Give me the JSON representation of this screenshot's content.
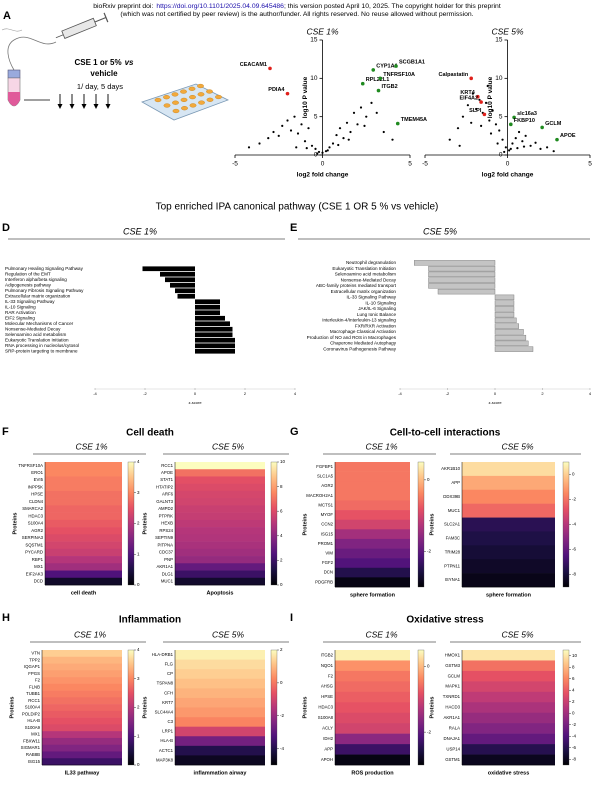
{
  "header": {
    "prefix": "bioRxiv preprint doi:",
    "doi": "https://doi.org/10.1101/2025.04.09.645486",
    "suffix": "; this version posted April 10, 2025. The copyright holder for this preprint",
    "line2": "(which was not certified by peer review) is the author/funder. All rights reserved. No reuse allowed without permission."
  },
  "panels": {
    "a": "A",
    "d": "D",
    "e": "E",
    "f": "F",
    "g": "G",
    "h": "H",
    "i": "I"
  },
  "schema": {
    "treatment": "CSE 1 or 5%",
    "vs": "vs",
    "control": "vehicle",
    "dosing": "1/ day, 5 days"
  },
  "ipa_title": "Top enriched IPA canonical pathway (CSE 1 OR 5 % vs vehicle)",
  "sections": {
    "f": "Cell death",
    "g": "Cell-to-cell interactions",
    "h": "Inflammation",
    "i": "Oxidative stress"
  },
  "chart_data": [
    {
      "type": "scatter",
      "title": "CSE 1%",
      "xlabel": "log2 fold change",
      "ylabel": "log10 P value",
      "xlim": [
        -5,
        5
      ],
      "ylim": [
        0,
        15
      ],
      "xticks": [
        -5,
        0,
        5
      ],
      "yticks": [
        0,
        5,
        10,
        15
      ],
      "point_color": "#000000",
      "points": {
        "x": [
          -4.2,
          -3.6,
          -3.1,
          -2.8,
          -2.5,
          -2.3,
          -2.0,
          -1.8,
          -1.6,
          -1.4,
          -1.2,
          -1.0,
          -0.8,
          -0.6,
          -0.4,
          -0.2,
          0,
          0.2,
          0.4,
          0.6,
          0.8,
          1.0,
          1.2,
          1.4,
          1.6,
          1.8,
          2.0,
          2.2,
          2.5,
          2.8,
          3.1,
          3.5,
          4.0,
          -1.5,
          -0.9,
          -0.3,
          0.3,
          0.9,
          1.5,
          2.4
        ],
        "y": [
          1.0,
          1.5,
          2.2,
          3.0,
          2.5,
          3.8,
          4.5,
          3.2,
          5.0,
          2.8,
          4.0,
          1.8,
          3.5,
          1.2,
          0.8,
          0.4,
          0.3,
          0.5,
          1.0,
          1.5,
          2.6,
          3.5,
          2.2,
          4.2,
          3.0,
          5.5,
          4.0,
          6.2,
          5.0,
          6.8,
          5.5,
          3.0,
          2.0,
          1.0,
          0.9,
          0.2,
          0.6,
          1.3,
          2.0,
          3.8
        ]
      },
      "labeled": [
        {
          "name": "CEACAM1",
          "color": "#e0201b",
          "x": -3.0,
          "y": 11.3
        },
        {
          "name": "PDIA4",
          "color": "#e0201b",
          "x": -2.0,
          "y": 8.0
        },
        {
          "name": "CYP1A1",
          "color": "#1f8a1f",
          "x": 2.9,
          "y": 11.1
        },
        {
          "name": "SCGB1A1",
          "color": "#1f8a1f",
          "x": 4.2,
          "y": 11.6
        },
        {
          "name": "RPL22L1",
          "color": "#1f8a1f",
          "x": 2.3,
          "y": 9.3
        },
        {
          "name": "TNFRSF10A",
          "color": "#1f8a1f",
          "x": 3.3,
          "y": 10.0
        },
        {
          "name": "ITGB2",
          "color": "#1f8a1f",
          "x": 3.2,
          "y": 8.4
        },
        {
          "name": "TMEM45A",
          "color": "#1f8a1f",
          "x": 4.3,
          "y": 4.1
        }
      ]
    },
    {
      "type": "scatter",
      "title": "CSE 5%",
      "xlabel": "log2 fold change",
      "ylabel": "log10 P value",
      "xlim": [
        -5,
        5
      ],
      "ylim": [
        0,
        15
      ],
      "xticks": [
        -5,
        0,
        5
      ],
      "yticks": [
        0,
        5,
        10,
        15
      ],
      "point_color": "#000000",
      "points": {
        "x": [
          -3.5,
          -3.0,
          -2.7,
          -2.4,
          -2.1,
          -1.9,
          -1.7,
          -1.5,
          -1.3,
          -1.1,
          -0.9,
          -0.7,
          -0.5,
          -0.3,
          -0.1,
          0.1,
          0.3,
          0.5,
          0.7,
          0.9,
          1.1,
          1.4,
          1.7,
          2.0,
          2.4,
          2.8,
          -2.2,
          -1.6,
          -1.0,
          -0.6,
          -0.2,
          0.2,
          0.6,
          1.0,
          -2.9,
          -1.2
        ],
        "y": [
          2.0,
          3.5,
          5.0,
          6.5,
          8.0,
          6.0,
          7.2,
          5.5,
          6.8,
          4.5,
          5.8,
          4.0,
          3.2,
          2.0,
          1.0,
          0.6,
          1.5,
          2.2,
          3.0,
          1.8,
          2.5,
          1.2,
          1.6,
          0.8,
          1.0,
          0.5,
          4.2,
          3.8,
          2.8,
          1.5,
          0.4,
          0.8,
          0.9,
          1.1,
          1.2,
          9.0
        ]
      },
      "labeled": [
        {
          "name": "Calpastatin",
          "color": "#e0201b",
          "x": -2.2,
          "y": 10.0
        },
        {
          "name": "KRT4",
          "color": "#e0201b",
          "x": -1.8,
          "y": 7.6
        },
        {
          "name": "EIF4A2",
          "color": "#e0201b",
          "x": -1.6,
          "y": 6.9
        },
        {
          "name": "SLPI",
          "color": "#e0201b",
          "x": -1.4,
          "y": 5.3
        },
        {
          "name": "slc16a3",
          "color": "#1f8a1f",
          "x": 0.4,
          "y": 4.9
        },
        {
          "name": "FKBP10",
          "color": "#1f8a1f",
          "x": 0.2,
          "y": 4.0
        },
        {
          "name": "GCLM",
          "color": "#1f8a1f",
          "x": 2.1,
          "y": 3.6
        },
        {
          "name": "APOE",
          "color": "#1f8a1f",
          "x": 3.0,
          "y": 2.0
        }
      ]
    },
    {
      "type": "barh",
      "title": "CSE 1%",
      "xlabel": "z-score",
      "xlim": [
        -4,
        4
      ],
      "xticks": [
        -4,
        -2,
        0,
        2,
        4
      ],
      "color": "#000000",
      "categories": [
        "Pulmonary Healing Signaling Pathway",
        "Regulation of the EMT",
        "Interferon alpha/beta signaling",
        "Adipogenesis pathway",
        "Pulmonary Fibrosis Signaling Pathway",
        "Extracellular matrix organization",
        "IL-33 Signaling Pathway",
        "IL-10 Signaling",
        "RAR Activation",
        "EIF2 Signaling",
        "Molecular Mechanisms of Cancer",
        "Nonsense-Mediated Decay",
        "Selenoamino acid metabolism",
        "Eukaryotic Translation Initiation",
        "RNA processing in nucleolus/cytosol",
        "SRP-protein targeting to membrane"
      ],
      "values": [
        -2.1,
        -1.4,
        -1.2,
        -1.0,
        -0.8,
        -0.7,
        1.0,
        1.0,
        1.0,
        1.2,
        1.4,
        1.5,
        1.5,
        1.6,
        1.6,
        1.6
      ]
    },
    {
      "type": "barh",
      "title": "CSE 5%",
      "xlabel": "z-score",
      "xlim": [
        -4,
        4
      ],
      "xticks": [
        -4,
        -2,
        0,
        2,
        4
      ],
      "color": "#c4c4c4",
      "edgecolor": "#6e6e6e",
      "categories": [
        "Neutrophil degranulation",
        "Eukaryotic Translation Initiation",
        "Selenoamino acid metabolism",
        "Nonsense-Mediated Decay",
        "ABC-family proteins mediated transport",
        "Extracellular matrix organization",
        "IL-33 Signaling Pathway",
        "IL-10 Signaling",
        "JAK/IL-6 Signaling",
        "Lung Ionic Balance",
        "Interleukin-4/Interleukin-13 signaling",
        "FXR/RXR Activation",
        "Macrophage Classical Activation",
        "Production of NO and ROS in Macrophages",
        "Chaperone Mediated Autophagy",
        "Coronavirus Pathogenesis Pathway"
      ],
      "values": [
        -3.4,
        -2.8,
        -2.8,
        -2.8,
        -2.8,
        -2.4,
        0.8,
        0.8,
        0.8,
        0.8,
        0.9,
        1.0,
        1.2,
        1.3,
        1.4,
        1.6
      ]
    },
    {
      "type": "heatmap",
      "title": "CSE 1%",
      "xlabel": "cell death",
      "ylabel": "Proteins",
      "colormap": "magma",
      "clim": [
        0,
        4
      ],
      "cticks": [
        0,
        1,
        2,
        3,
        4
      ],
      "categories": [
        "TNFRSF10A",
        "ERO1",
        "EVI5",
        "INPP5K",
        "HPSE",
        "CLDN4",
        "SMARCA2",
        "HDAC3",
        "S100A4",
        "AGR2",
        "SERPINA3",
        "SQSTM1",
        "PYCARD",
        "RBP1",
        "MX1",
        "EIF2AK3",
        "DCD"
      ],
      "values": [
        3.0,
        3.0,
        2.9,
        2.9,
        2.8,
        2.8,
        2.7,
        2.7,
        2.6,
        2.5,
        2.4,
        2.3,
        2.2,
        2.0,
        1.8,
        1.0,
        0.3
      ]
    },
    {
      "type": "heatmap",
      "title": "CSE 5%",
      "xlabel": "Apoptosis",
      "ylabel": "Proteins",
      "colormap": "magma",
      "clim": [
        0,
        10
      ],
      "cticks": [
        0,
        2,
        4,
        6,
        8,
        10
      ],
      "categories": [
        "RCC1",
        "APOE",
        "STAT1",
        "HTATIP2",
        "ARF6",
        "GALNT3",
        "AMPD2",
        "PTPRK",
        "HEXB",
        "RPS24",
        "SEPTIN9",
        "PITPNA",
        "CDC37",
        "PNP",
        "AKR1A1",
        "DLG1",
        "MUC1"
      ],
      "values": [
        10,
        7.0,
        6.2,
        6.0,
        5.8,
        5.7,
        5.5,
        5.4,
        5.2,
        5.0,
        4.9,
        4.7,
        4.5,
        4.2,
        3.0,
        2.0,
        0.8
      ]
    },
    {
      "type": "heatmap",
      "title": "CSE 1%",
      "xlabel": "sphere formation",
      "ylabel": "Proteins",
      "colormap": "magma",
      "clim": [
        -3,
        0.5
      ],
      "cticks": [
        -2,
        0
      ],
      "categories": [
        "FGFBP1",
        "SLC1A5",
        "AGR2",
        "MACROH2A1",
        "MCTS1",
        "MYOF",
        "CCN2",
        "ISG15",
        "PROM1",
        "VIM",
        "FGF2",
        "DCN",
        "PDGFRB"
      ],
      "values": [
        -0.5,
        -0.5,
        -0.5,
        -0.5,
        -0.6,
        -0.8,
        -1.0,
        -1.4,
        -1.7,
        -1.9,
        -2.1,
        -2.5,
        -2.9
      ]
    },
    {
      "type": "heatmap",
      "title": "CSE 5%",
      "xlabel": "sphere formation",
      "ylabel": "Proteins",
      "colormap": "magma",
      "clim": [
        -9,
        1
      ],
      "cticks": [
        -8,
        -6,
        -4,
        -2,
        0
      ],
      "categories": [
        "AKR1B10",
        "APP",
        "DDX39B",
        "MUC1",
        "SLC2A1",
        "FAM3C",
        "TRIM28",
        "PTPN11",
        "ISYNA1"
      ],
      "values": [
        0.3,
        -0.8,
        -1.5,
        -2.2,
        -7.4,
        -7.7,
        -8.0,
        -8.3,
        -8.6
      ]
    },
    {
      "type": "heatmap",
      "title": "CSE 1%",
      "xlabel": "IL33 pathway",
      "ylabel": "Proteins",
      "colormap": "magma",
      "clim": [
        0,
        4
      ],
      "cticks": [
        0,
        1,
        2,
        3,
        4
      ],
      "categories": [
        "VTN",
        "TPP2",
        "IQGAP1",
        "FPGS",
        "F2",
        "FLNB",
        "TUBB1",
        "RCC1",
        "S100A4",
        "POLDIP2",
        "HLA-B",
        "S100A9",
        "MX1",
        "FBXW11",
        "SIGMAR1",
        "RAB8B",
        "ISG15"
      ],
      "values": [
        3.6,
        3.4,
        3.3,
        3.2,
        3.1,
        3.0,
        2.9,
        2.8,
        2.7,
        2.6,
        2.5,
        2.4,
        2.0,
        1.7,
        1.5,
        1.2,
        0.8
      ]
    },
    {
      "type": "heatmap",
      "title": "CSE 5%",
      "xlabel": "inflammation airway",
      "ylabel": "Proteins",
      "colormap": "magma",
      "clim": [
        -5,
        2
      ],
      "cticks": [
        -4,
        -2,
        0,
        2
      ],
      "categories": [
        "HLA-DRB1",
        "FLG",
        "CP",
        "TSPAN8",
        "CFH",
        "KRT7",
        "SLC44A4",
        "C3",
        "LRP1",
        "HLA-B",
        "ACTC1",
        "MAP3K8"
      ],
      "values": [
        1.8,
        1.5,
        1.3,
        1.1,
        0.9,
        0.7,
        0.5,
        0.2,
        -1.0,
        -2.6,
        -4.0,
        -4.6
      ]
    },
    {
      "type": "heatmap",
      "title": "CSE 1%",
      "xlabel": "ROS production",
      "ylabel": "Proteins",
      "colormap": "magma",
      "clim": [
        -3,
        0.5
      ],
      "cticks": [
        -2,
        0
      ],
      "categories": [
        "ITGB2",
        "NQO1",
        "F2",
        "AHSG",
        "HPSE",
        "HDAC3",
        "S100A8",
        "ACLY",
        "IDH2",
        "APP",
        "APOH"
      ],
      "values": [
        0.4,
        -0.3,
        -0.5,
        -0.6,
        -0.7,
        -0.8,
        -0.9,
        -1.0,
        -1.6,
        -2.3,
        -2.9
      ]
    },
    {
      "type": "heatmap",
      "title": "CSE 5%",
      "xlabel": "oxidative stress",
      "ylabel": "Proteins",
      "colormap": "magma",
      "clim": [
        -9,
        11
      ],
      "cticks": [
        -8,
        -6,
        -4,
        -2,
        0,
        2,
        4,
        6,
        8,
        10
      ],
      "categories": [
        "HMOX1",
        "GSTM3",
        "GCLM",
        "MAPK1",
        "TXNRD1",
        "HACD3",
        "AKR1A1",
        "RALA",
        "DNAJA1",
        "USP14",
        "GSTM1"
      ],
      "values": [
        10,
        5,
        3.5,
        2.5,
        1.5,
        0.5,
        -0.5,
        -1.5,
        -3,
        -6,
        -8
      ]
    }
  ]
}
